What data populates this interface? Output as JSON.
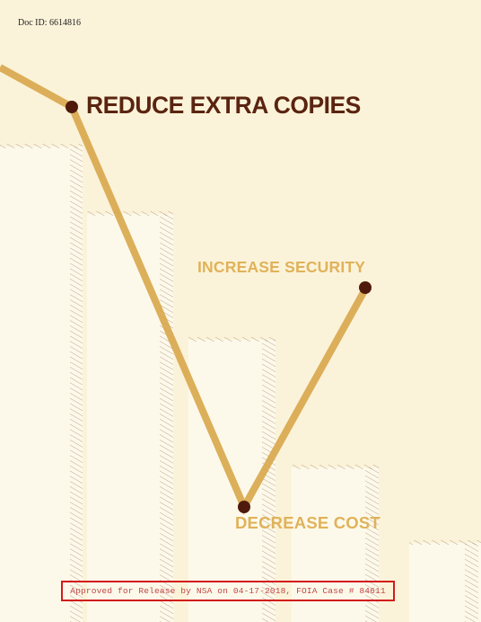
{
  "doc_id": "Doc ID: 6614816",
  "headline": "REDUCE EXTRA COPIES",
  "labels": {
    "increase_security": "INCREASE SECURITY",
    "decrease_cost": "DECREASE COST"
  },
  "release_notice": "Approved for Release by NSA on 04-17-2018, FOIA Case # 84611",
  "colors": {
    "background": "#fbf3d9",
    "bar_fill": "#fdf9ea",
    "hatch": "#6b3a22",
    "trend_line": "#d8a64a",
    "marker": "#4f1a0c",
    "headline": "#5a2410",
    "accent_label": "#e0b25a",
    "release_border": "#d21c1c"
  }
}
